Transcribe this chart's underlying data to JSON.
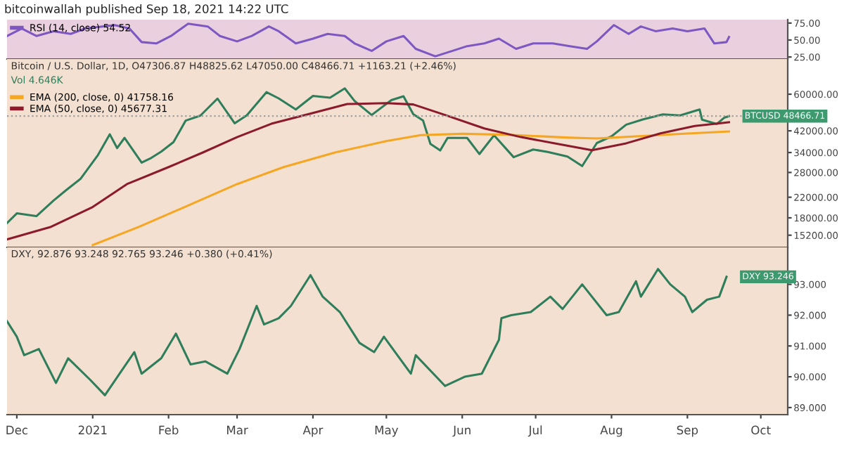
{
  "chart_data": [
    {
      "type": "line",
      "title": "bitcoinwallah published Sep 18, 2021 14:22 UTC",
      "series": [
        {
          "name": "RSI (14, close) 54.52",
          "color": "#7e57c2",
          "x": [
            "2020-11-27",
            "2020-12-03",
            "2020-12-09",
            "2020-12-16",
            "2020-12-23",
            "2020-12-29",
            "2021-01-05",
            "2021-01-10",
            "2021-01-16",
            "2021-01-21",
            "2021-01-27",
            "2021-02-02",
            "2021-02-09",
            "2021-02-17",
            "2021-02-22",
            "2021-03-01",
            "2021-03-07",
            "2021-03-14",
            "2021-03-18",
            "2021-03-25",
            "2021-04-01",
            "2021-04-07",
            "2021-04-14",
            "2021-04-18",
            "2021-04-25",
            "2021-05-01",
            "2021-05-08",
            "2021-05-13",
            "2021-05-21",
            "2021-05-28",
            "2021-06-03",
            "2021-06-10",
            "2021-06-16",
            "2021-06-23",
            "2021-06-30",
            "2021-07-08",
            "2021-07-15",
            "2021-07-22",
            "2021-07-26",
            "2021-08-02",
            "2021-08-08",
            "2021-08-13",
            "2021-08-19",
            "2021-08-26",
            "2021-09-01",
            "2021-09-08",
            "2021-09-12",
            "2021-09-17",
            "2021-09-18"
          ],
          "values": [
            56,
            67,
            56,
            63,
            59,
            67,
            70,
            72,
            67,
            47,
            45,
            56,
            74,
            70,
            56,
            48,
            56,
            70,
            63,
            45,
            52,
            59,
            56,
            45,
            34,
            48,
            56,
            37,
            26,
            34,
            41,
            45,
            52,
            37,
            45,
            45,
            41,
            37,
            48,
            72,
            59,
            70,
            63,
            67,
            63,
            67,
            45,
            47,
            54.52
          ]
        }
      ],
      "xlim": [
        "2020-11-27",
        "2021-10-12"
      ],
      "ylim": [
        22,
        80
      ],
      "yticks": [
        {
          "value": 25,
          "label": "25.00"
        },
        {
          "value": 50,
          "label": "50.00"
        },
        {
          "value": 75,
          "label": "75.00"
        }
      ],
      "tick_labels": "y",
      "legend": "top left"
    },
    {
      "type": "line",
      "title": "Bitcoin / U.S. Dollar, 1D, O47306.87 H48825.62 L47050.00 C48466.71 +1163.21 (+2.46%)",
      "annotations": [
        "Vol 4.646K",
        {
          "text": "BTCUSD 48466.71",
          "x": "2021-09-18",
          "y": 48466.71
        }
      ],
      "series": [
        {
          "color": "#2e7d5b",
          "x": [
            "2020-11-27",
            "2020-12-01",
            "2020-12-09",
            "2020-12-16",
            "2020-12-21",
            "2020-12-27",
            "2021-01-03",
            "2021-01-08",
            "2021-01-11",
            "2021-01-14",
            "2021-01-21",
            "2021-01-25",
            "2021-01-29",
            "2021-02-03",
            "2021-02-08",
            "2021-02-14",
            "2021-02-21",
            "2021-02-28",
            "2021-03-05",
            "2021-03-13",
            "2021-03-18",
            "2021-03-25",
            "2021-04-01",
            "2021-04-08",
            "2021-04-14",
            "2021-04-18",
            "2021-04-25",
            "2021-05-03",
            "2021-05-08",
            "2021-05-12",
            "2021-05-16",
            "2021-05-19",
            "2021-05-23",
            "2021-05-26",
            "2021-06-03",
            "2021-06-08",
            "2021-06-14",
            "2021-06-22",
            "2021-06-30",
            "2021-07-06",
            "2021-07-14",
            "2021-07-20",
            "2021-07-26",
            "2021-08-01",
            "2021-08-07",
            "2021-08-14",
            "2021-08-22",
            "2021-08-29",
            "2021-09-06",
            "2021-09-07",
            "2021-09-13",
            "2021-09-16",
            "2021-09-18"
          ],
          "values": [
            17100,
            18800,
            18300,
            21300,
            23500,
            26300,
            33000,
            40600,
            35500,
            39200,
            30800,
            32300,
            34300,
            37600,
            46400,
            48700,
            57500,
            45200,
            48900,
            61200,
            57600,
            51700,
            59000,
            58000,
            63500,
            56200,
            49000,
            56600,
            58800,
            49400,
            46400,
            37000,
            34700,
            39200,
            39200,
            33500,
            40200,
            32500,
            35000,
            34200,
            32700,
            29800,
            37300,
            39800,
            44600,
            47000,
            49300,
            48800,
            51700,
            46800,
            44900,
            47700,
            48466.71
          ]
        },
        {
          "name": "EMA (200, close, 0) 41758.16",
          "color": "#f5a623",
          "x": [
            "2021-01-01",
            "2021-01-20",
            "2021-02-10",
            "2021-03-01",
            "2021-03-20",
            "2021-04-10",
            "2021-05-01",
            "2021-05-15",
            "2021-06-01",
            "2021-06-20",
            "2021-07-15",
            "2021-07-26",
            "2021-08-15",
            "2021-09-01",
            "2021-09-18"
          ],
          "values": [
            13800,
            16500,
            20500,
            25000,
            29500,
            34000,
            38000,
            40300,
            40800,
            40400,
            39300,
            39000,
            40000,
            40900,
            41758.16
          ]
        },
        {
          "name": "EMA (50, close, 0) 45677.31",
          "color": "#8b1a2b",
          "x": [
            "2020-11-27",
            "2020-12-15",
            "2021-01-01",
            "2021-01-15",
            "2021-02-01",
            "2021-02-15",
            "2021-03-01",
            "2021-03-15",
            "2021-04-01",
            "2021-04-15",
            "2021-05-01",
            "2021-05-12",
            "2021-05-25",
            "2021-06-10",
            "2021-06-25",
            "2021-07-10",
            "2021-07-24",
            "2021-08-07",
            "2021-08-21",
            "2021-09-04",
            "2021-09-18"
          ],
          "values": [
            14600,
            16500,
            20000,
            25000,
            29500,
            34000,
            39500,
            45000,
            50000,
            54500,
            55000,
            54300,
            49000,
            43000,
            39500,
            37000,
            34800,
            37200,
            41000,
            44000,
            45677.31
          ]
        }
      ],
      "ref_lines": [
        {
          "axis": "y",
          "value": 48466.71,
          "color": "#9e9e9e",
          "line_style": "dotted"
        }
      ],
      "log": "y",
      "xlim": [
        "2020-11-27",
        "2021-10-12"
      ],
      "ylim": [
        13500,
        84500
      ],
      "yticks": [
        {
          "value": 15200,
          "label": "15200.00"
        },
        {
          "value": 18000,
          "label": "18000.00"
        },
        {
          "value": 22000,
          "label": "22000.00"
        },
        {
          "value": 28000,
          "label": "28000.00"
        },
        {
          "value": 34000,
          "label": "34000.00"
        },
        {
          "value": 42000,
          "label": "42000.00"
        },
        {
          "value": 60000,
          "label": "60000.00"
        }
      ],
      "tick_labels": "y",
      "legend": "top left"
    },
    {
      "type": "line",
      "title": "DXY, 92.876 93.248 92.765 93.246 +0.380 (+0.41%)",
      "annotations": [
        {
          "text": "DXY 93.246",
          "x": "2021-09-17",
          "y": 93.246
        }
      ],
      "series": [
        {
          "color": "#2e7d5b",
          "x": [
            "2020-11-27",
            "2020-12-01",
            "2020-12-04",
            "2020-12-10",
            "2020-12-17",
            "2020-12-22",
            "2020-12-31",
            "2021-01-06",
            "2021-01-12",
            "2021-01-18",
            "2021-01-21",
            "2021-01-29",
            "2021-02-04",
            "2021-02-10",
            "2021-02-16",
            "2021-02-25",
            "2021-03-02",
            "2021-03-09",
            "2021-03-12",
            "2021-03-18",
            "2021-03-23",
            "2021-03-31",
            "2021-04-05",
            "2021-04-12",
            "2021-04-20",
            "2021-04-26",
            "2021-04-30",
            "2021-05-11",
            "2021-05-13",
            "2021-05-25",
            "2021-06-02",
            "2021-06-09",
            "2021-06-16",
            "2021-06-17",
            "2021-06-21",
            "2021-06-29",
            "2021-07-07",
            "2021-07-12",
            "2021-07-20",
            "2021-07-30",
            "2021-08-04",
            "2021-08-11",
            "2021-08-13",
            "2021-08-20",
            "2021-08-25",
            "2021-08-31",
            "2021-09-03",
            "2021-09-09",
            "2021-09-14",
            "2021-09-17"
          ],
          "values": [
            91.8,
            91.3,
            90.7,
            90.9,
            89.8,
            90.6,
            89.9,
            89.4,
            90.1,
            90.8,
            90.1,
            90.6,
            91.4,
            90.4,
            90.5,
            90.1,
            90.9,
            92.3,
            91.7,
            91.9,
            92.3,
            93.3,
            92.6,
            92.1,
            91.1,
            90.8,
            91.3,
            90.1,
            90.7,
            89.7,
            90.0,
            90.1,
            91.2,
            91.9,
            92.0,
            92.1,
            92.6,
            92.2,
            93.0,
            92.0,
            92.1,
            93.1,
            92.6,
            93.5,
            93.0,
            92.6,
            92.1,
            92.5,
            92.6,
            93.246
          ]
        }
      ],
      "xlim": [
        "2020-11-27",
        "2021-10-12"
      ],
      "ylim": [
        88.77,
        94.2
      ],
      "yticks": [
        {
          "value": 89,
          "label": "89.000"
        },
        {
          "value": 90,
          "label": "90.000"
        },
        {
          "value": 91,
          "label": "91.000"
        },
        {
          "value": 92,
          "label": "92.000"
        },
        {
          "value": 93,
          "label": "93.000"
        }
      ],
      "xticks": [
        {
          "value": "2020-12-01",
          "label": "Dec"
        },
        {
          "value": "2021-01-01",
          "label": "2021"
        },
        {
          "value": "2021-02-01",
          "label": "Feb"
        },
        {
          "value": "2021-03-01",
          "label": "Mar"
        },
        {
          "value": "2021-04-01",
          "label": "Apr"
        },
        {
          "value": "2021-05-01",
          "label": "May"
        },
        {
          "value": "2021-06-01",
          "label": "Jun"
        },
        {
          "value": "2021-07-01",
          "label": "Jul"
        },
        {
          "value": "2021-08-01",
          "label": "Aug"
        },
        {
          "value": "2021-09-01",
          "label": "Sep"
        },
        {
          "value": "2021-10-01",
          "label": "Oct"
        }
      ]
    }
  ]
}
